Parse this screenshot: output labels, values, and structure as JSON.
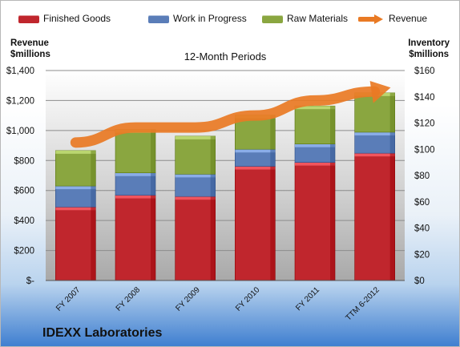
{
  "legend": {
    "finished": "Finished Goods",
    "wip": "Work in Progress",
    "raw": "Raw Materials",
    "revenue": "Revenue"
  },
  "left_axis": {
    "line1": "Revenue",
    "line2": "$millions"
  },
  "right_axis": {
    "line1": "Inventory",
    "line2": "$millions"
  },
  "footer": {
    "company": "IDEXX Laboratories"
  },
  "colors": {
    "finished": "#c0262d",
    "wip": "#5a7db8",
    "raw": "#8aa640",
    "revenue": "#e97a24"
  },
  "chart_data": {
    "type": "bar",
    "stacked": true,
    "title": "12-Month Periods",
    "categories": [
      "FY 2007",
      "FY 2008",
      "FY 2009",
      "FY 2010",
      "FY 2011",
      "TTM 6-2012"
    ],
    "series": [
      {
        "name": "Finished Goods",
        "axis": "right",
        "values": [
          56,
          65,
          64,
          87,
          90,
          97
        ]
      },
      {
        "name": "Work in Progress",
        "axis": "right",
        "values": [
          16,
          17,
          17,
          13,
          14,
          16
        ]
      },
      {
        "name": "Raw Materials",
        "axis": "right",
        "values": [
          27,
          33,
          29,
          26,
          29,
          30
        ]
      },
      {
        "name": "Revenue",
        "type": "line",
        "axis": "left",
        "values": [
          920,
          1020,
          1020,
          1100,
          1200,
          1260
        ]
      }
    ],
    "y_left": {
      "label": "Revenue $millions",
      "lim": [
        0,
        1400
      ],
      "ticks": [
        0,
        200,
        400,
        600,
        800,
        1000,
        1200,
        1400
      ],
      "tick_labels": [
        "$-",
        "$200",
        "$400",
        "$600",
        "$800",
        "$1,000",
        "$1,200",
        "$1,400"
      ]
    },
    "y_right": {
      "label": "Inventory $millions",
      "lim": [
        0,
        160
      ],
      "ticks": [
        0,
        20,
        40,
        60,
        80,
        100,
        120,
        140,
        160
      ],
      "tick_labels": [
        "$0",
        "$20",
        "$40",
        "$60",
        "$80",
        "$100",
        "$120",
        "$140",
        "$160"
      ]
    },
    "grid": true,
    "legend_position": "top"
  }
}
